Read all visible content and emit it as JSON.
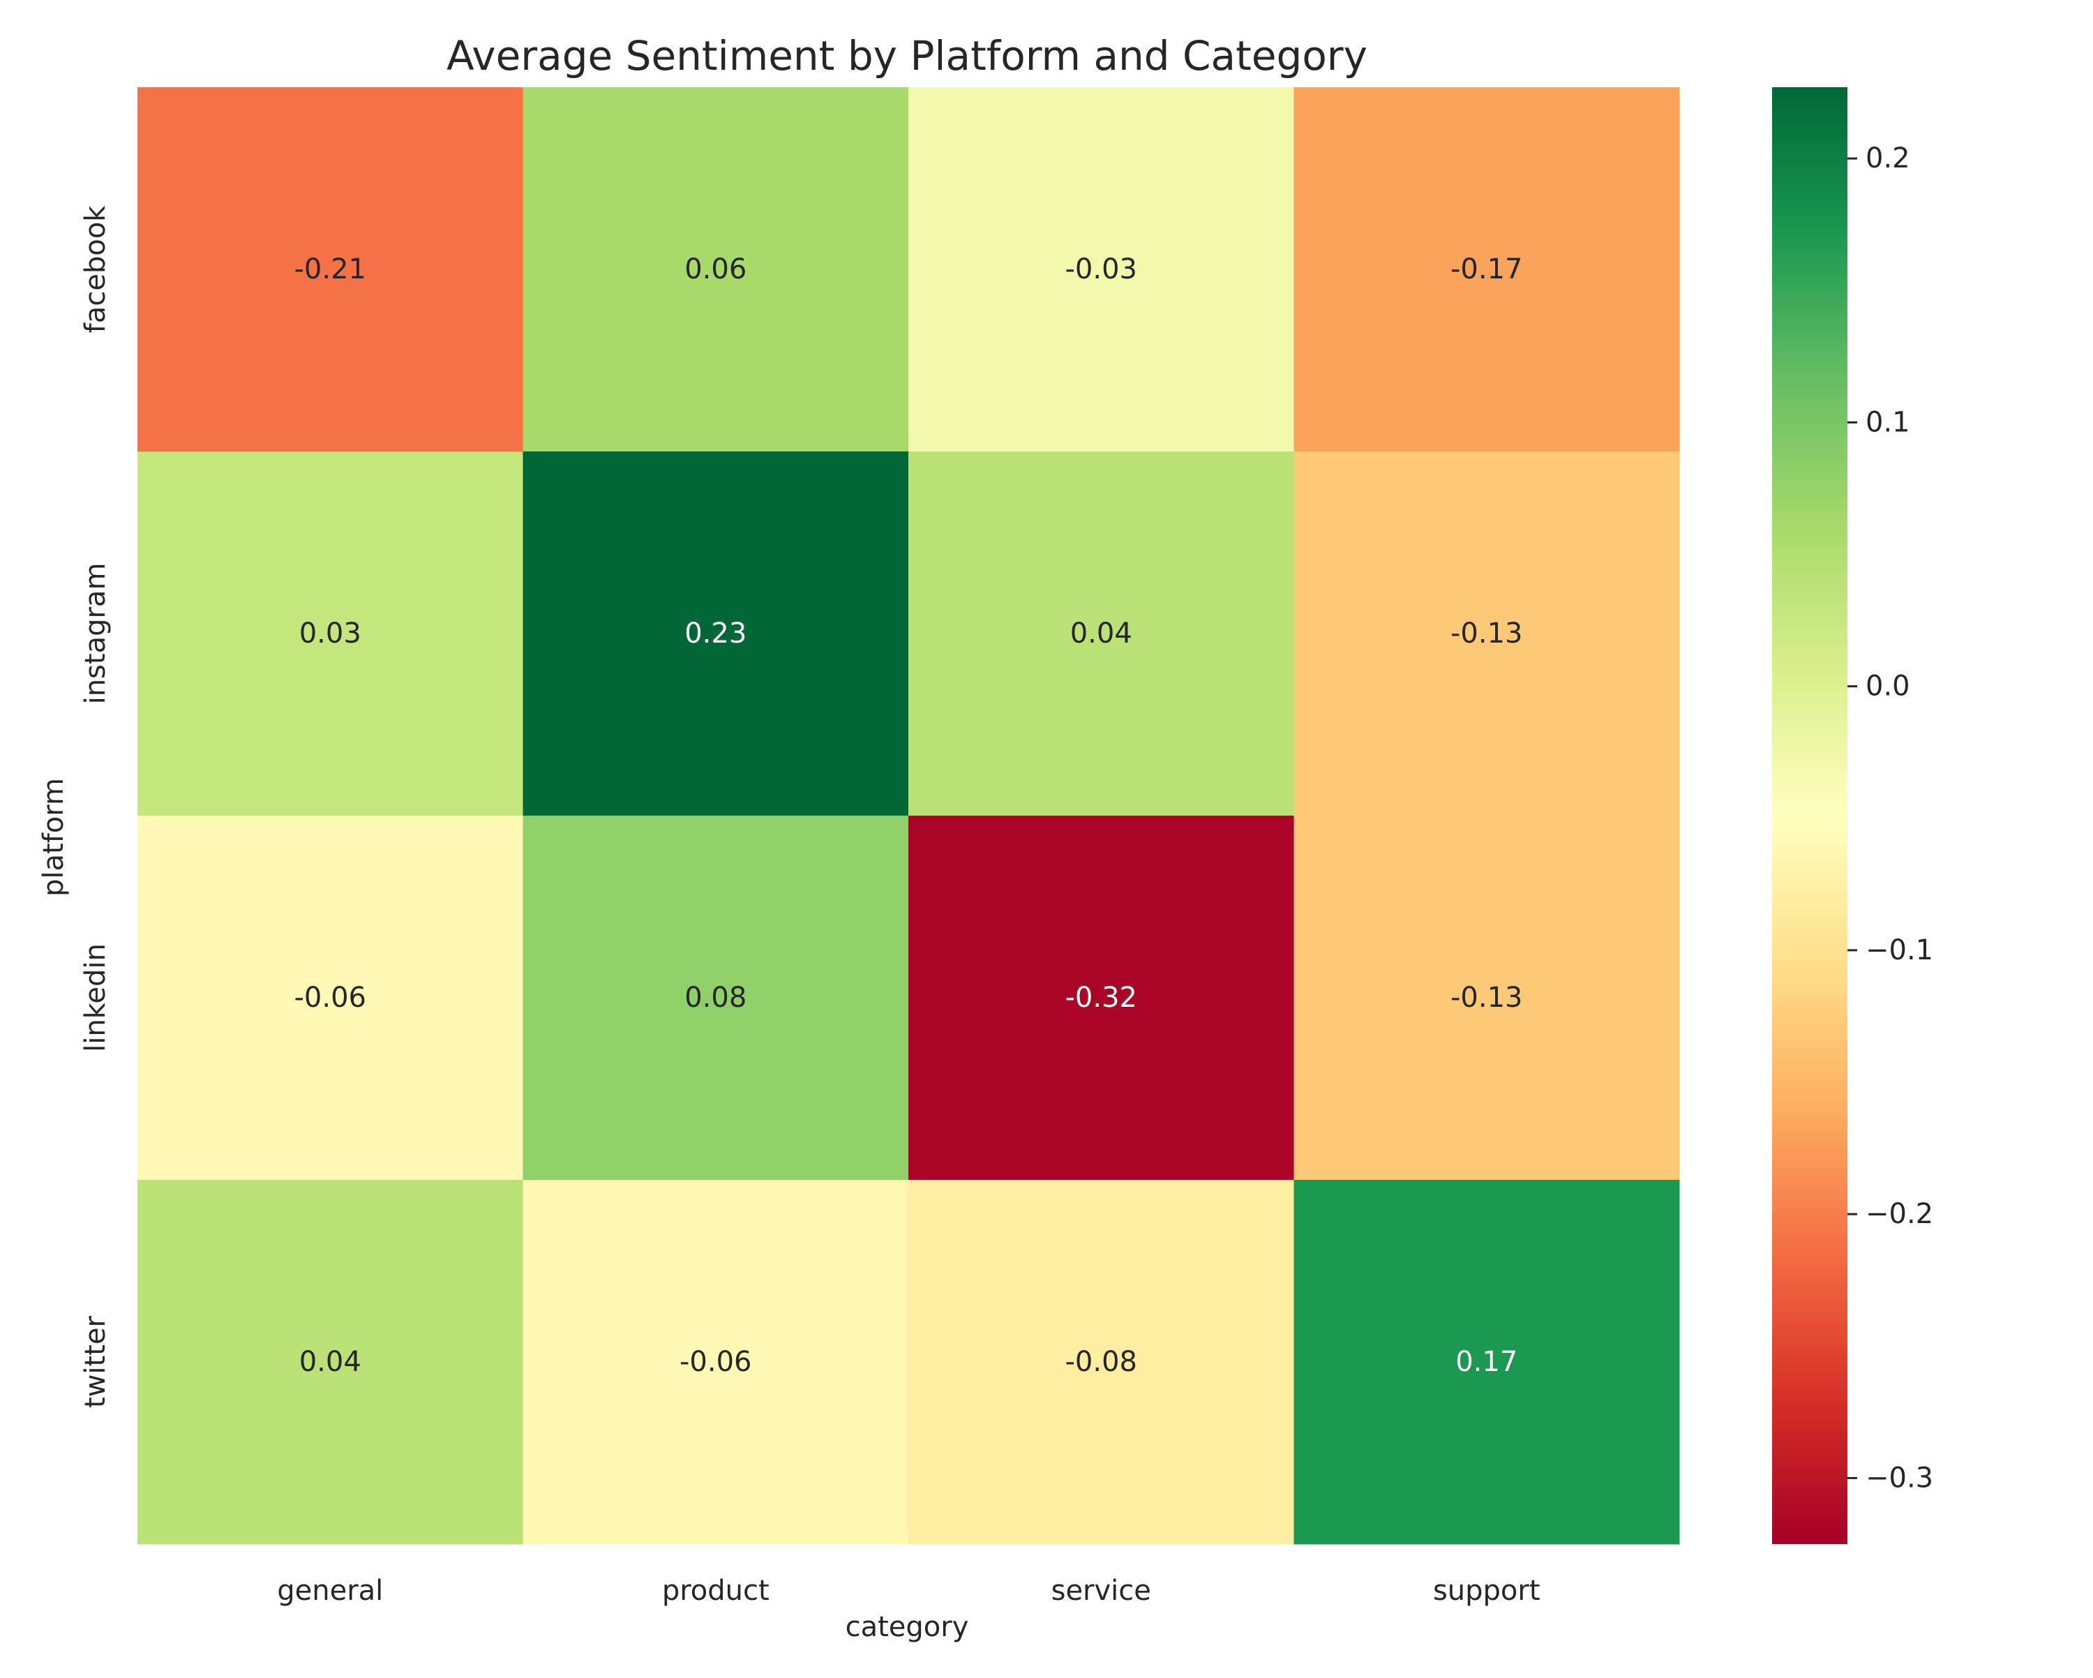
{
  "chart_data": {
    "type": "heatmap",
    "title": "Average Sentiment by Platform and Category",
    "xlabel": "category",
    "ylabel": "platform",
    "categories": [
      "general",
      "product",
      "service",
      "support"
    ],
    "rows": [
      "facebook",
      "instagram",
      "linkedin",
      "twitter"
    ],
    "values": [
      [
        -0.21,
        0.06,
        -0.03,
        -0.17
      ],
      [
        0.03,
        0.23,
        0.04,
        -0.13
      ],
      [
        -0.06,
        0.08,
        -0.32,
        -0.13
      ],
      [
        0.04,
        -0.06,
        -0.08,
        0.17
      ]
    ],
    "value_labels": [
      [
        "-0.21",
        "0.06",
        "-0.03",
        "-0.17"
      ],
      [
        "0.03",
        "0.23",
        "0.04",
        "-0.13"
      ],
      [
        "-0.06",
        "0.08",
        "-0.32",
        "-0.13"
      ],
      [
        "0.04",
        "-0.06",
        "-0.08",
        "0.17"
      ]
    ],
    "colorbar": {
      "colormap": "RdYlGn",
      "min": -0.325,
      "max": 0.227,
      "ticks": [
        0.2,
        0.1,
        0.0,
        -0.1,
        -0.2,
        -0.3
      ],
      "tick_labels": [
        "0.2",
        "0.1",
        "0.0",
        "−0.1",
        "−0.2",
        "−0.3"
      ]
    },
    "grid": false,
    "legend": "colorbar-right"
  }
}
